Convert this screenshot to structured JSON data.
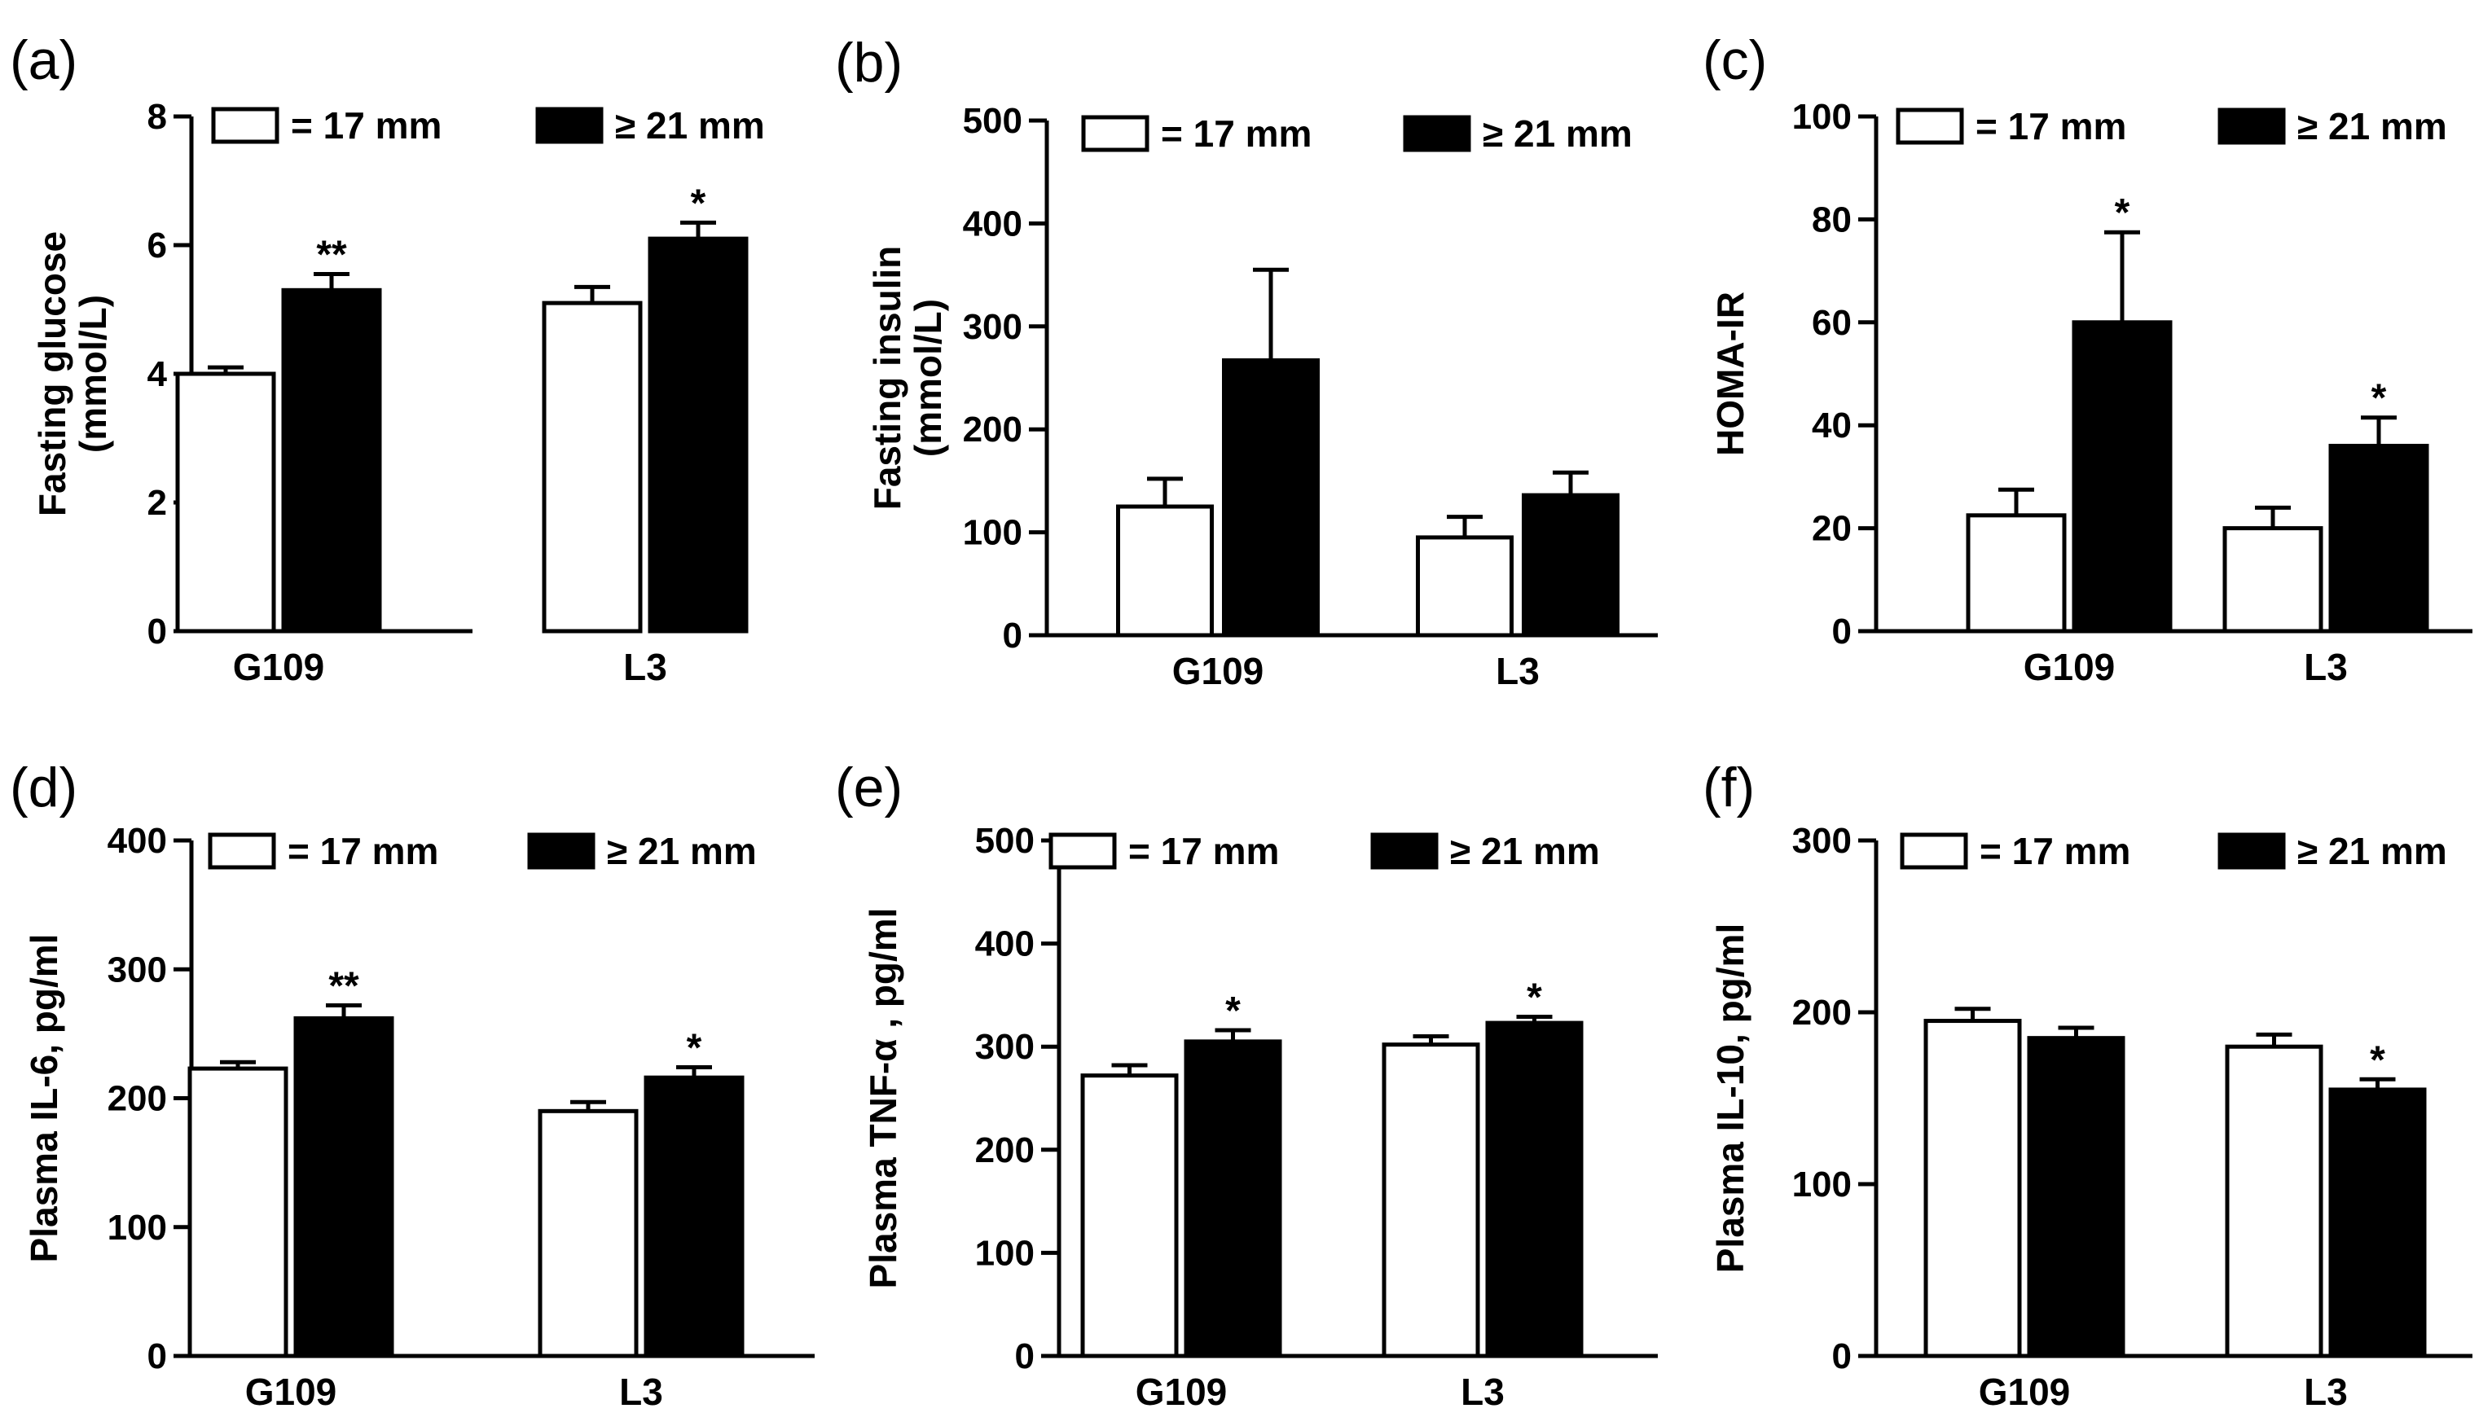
{
  "figure": {
    "legend": {
      "open_label": "= 17 mm",
      "filled_label": "≥  21 mm",
      "open_color": "#ffffff",
      "filled_color": "#000000"
    }
  },
  "chart_data": [
    {
      "panel": "(a)",
      "type": "bar",
      "title": "",
      "xlabel": "",
      "ylabel_line1": "Fasting glucose",
      "ylabel_line2": "(mmol/L)",
      "categories": [
        "G109",
        "L3"
      ],
      "series": [
        {
          "name": "= 17 mm",
          "values": [
            4.0,
            5.1
          ],
          "errors": [
            0.1,
            0.25
          ]
        },
        {
          "name": "≥  21 mm",
          "values": [
            5.3,
            6.1
          ],
          "errors": [
            0.25,
            0.25
          ]
        }
      ],
      "significance": [
        {
          "category": "G109",
          "series": 1,
          "text": "**"
        },
        {
          "category": "L3",
          "series": 1,
          "text": "*"
        }
      ],
      "ylim": [
        0,
        8
      ],
      "yticks": [
        0,
        2,
        4,
        6,
        8
      ],
      "yticklabels": [
        "0",
        "2",
        "4",
        "6",
        "8"
      ],
      "legend": "top"
    },
    {
      "panel": "(b)",
      "type": "bar",
      "title": "",
      "xlabel": "",
      "ylabel_line1": "Fasting insulin",
      "ylabel_line2": "(mmol/L)",
      "categories": [
        "G109",
        "L3"
      ],
      "series": [
        {
          "name": "= 17 mm",
          "values": [
            125,
            95
          ],
          "errors": [
            27,
            20
          ]
        },
        {
          "name": "≥  21 mm",
          "values": [
            267,
            136
          ],
          "errors": [
            88,
            22
          ]
        }
      ],
      "significance": [],
      "ylim": [
        0,
        500
      ],
      "yticks": [
        0,
        100,
        200,
        300,
        400,
        500
      ],
      "yticklabels": [
        "0",
        "100",
        "200",
        "300",
        "400",
        "500"
      ],
      "legend": "top"
    },
    {
      "panel": "(c)",
      "type": "bar",
      "title": "",
      "xlabel": "",
      "ylabel_line1": "HOMA-IR",
      "ylabel_line2": "",
      "categories": [
        "G109",
        "L3"
      ],
      "series": [
        {
          "name": "= 17 mm",
          "values": [
            22.5,
            20
          ],
          "errors": [
            5,
            4
          ]
        },
        {
          "name": "≥  21 mm",
          "values": [
            60,
            36
          ],
          "errors": [
            17.5,
            5.5
          ]
        }
      ],
      "significance": [
        {
          "category": "G109",
          "series": 1,
          "text": "*"
        },
        {
          "category": "L3",
          "series": 1,
          "text": "*"
        }
      ],
      "ylim": [
        0,
        100
      ],
      "yticks": [
        0,
        20,
        40,
        60,
        80,
        100
      ],
      "yticklabels": [
        "0",
        "20",
        "40",
        "60",
        "80",
        "100"
      ],
      "legend": "top"
    },
    {
      "panel": "(d)",
      "type": "bar",
      "title": "",
      "xlabel": "",
      "ylabel_line1": "Plasma IL-6, pg/ml",
      "ylabel_line2": "",
      "categories": [
        "G109",
        "L3"
      ],
      "series": [
        {
          "name": "= 17 mm",
          "values": [
            223,
            190
          ],
          "errors": [
            5,
            7
          ]
        },
        {
          "name": "≥  21 mm",
          "values": [
            262,
            216
          ],
          "errors": [
            10,
            8
          ]
        }
      ],
      "significance": [
        {
          "category": "G109",
          "series": 1,
          "text": "**"
        },
        {
          "category": "L3",
          "series": 1,
          "text": "*"
        }
      ],
      "ylim": [
        0,
        400
      ],
      "yticks": [
        0,
        100,
        200,
        300,
        400
      ],
      "yticklabels": [
        "0",
        "100",
        "200",
        "300",
        "400"
      ],
      "legend": "top"
    },
    {
      "panel": "(e)",
      "type": "bar",
      "title": "",
      "xlabel": "",
      "ylabel_line1": "Plasma TNF-α , pg/ml",
      "ylabel_line2": "",
      "categories": [
        "G109",
        "L3"
      ],
      "series": [
        {
          "name": "= 17 mm",
          "values": [
            272,
            302
          ],
          "errors": [
            10,
            8
          ]
        },
        {
          "name": "≥  21 mm",
          "values": [
            305,
            323
          ],
          "errors": [
            11,
            6
          ]
        }
      ],
      "significance": [
        {
          "category": "G109",
          "series": 1,
          "text": "*"
        },
        {
          "category": "L3",
          "series": 1,
          "text": "*"
        }
      ],
      "ylim": [
        0,
        500
      ],
      "yticks": [
        0,
        100,
        200,
        300,
        400,
        500
      ],
      "yticklabels": [
        "0",
        "100",
        "200",
        "300",
        "400",
        "500"
      ],
      "legend": "top"
    },
    {
      "panel": "(f)",
      "type": "bar",
      "title": "",
      "xlabel": "",
      "ylabel_line1": "Plasma IL-10, pg/ml",
      "ylabel_line2": "",
      "categories": [
        "G109",
        "L3"
      ],
      "series": [
        {
          "name": "= 17 mm",
          "values": [
            195,
            180
          ],
          "errors": [
            7,
            7
          ]
        },
        {
          "name": "≥  21 mm",
          "values": [
            185,
            155
          ],
          "errors": [
            6,
            6
          ]
        }
      ],
      "significance": [
        {
          "category": "L3",
          "series": 1,
          "text": "*"
        }
      ],
      "ylim": [
        0,
        300
      ],
      "yticks": [
        0,
        100,
        200,
        300
      ],
      "yticklabels": [
        "0",
        "100",
        "200",
        "300"
      ],
      "legend": "top"
    }
  ]
}
